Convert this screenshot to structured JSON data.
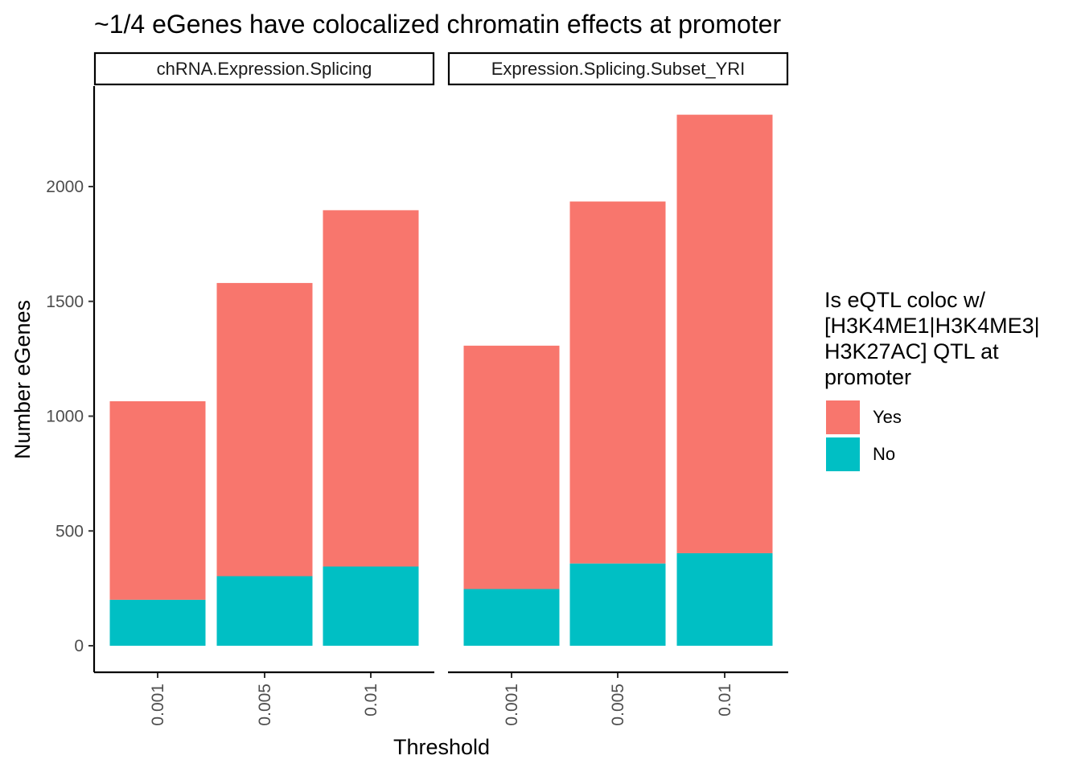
{
  "chart_data": {
    "type": "bar",
    "stacked": true,
    "title": "~1/4 eGenes have colocalized chromatin effects at promoter",
    "xlabel": "Threshold",
    "ylabel": "Number eGenes",
    "ylim": [
      0,
      2330
    ],
    "yticks": [
      0,
      500,
      1000,
      1500,
      2000
    ],
    "categories": [
      "0.001",
      "0.005",
      "0.01"
    ],
    "legend": {
      "title_lines": [
        "Is eQTL coloc w/",
        "[H3K4ME1|H3K4ME3|",
        "H3K27AC] QTL at",
        "promoter"
      ],
      "position": "right"
    },
    "series_colors": {
      "Yes": "#F8766D",
      "No": "#00BFC4"
    },
    "panels": [
      {
        "facet": "chRNA.Expression.Splicing",
        "series": [
          {
            "name": "No",
            "values": [
              200,
              303,
              345
            ]
          },
          {
            "name": "Yes",
            "values": [
              865,
              1277,
              1552
            ]
          }
        ]
      },
      {
        "facet": "Expression.Splicing.Subset_YRI",
        "series": [
          {
            "name": "No",
            "values": [
              247,
              358,
              403
            ]
          },
          {
            "name": "Yes",
            "values": [
              1060,
              1577,
              1910
            ]
          }
        ]
      }
    ],
    "legend_order": [
      "Yes",
      "No"
    ],
    "grid": false
  }
}
